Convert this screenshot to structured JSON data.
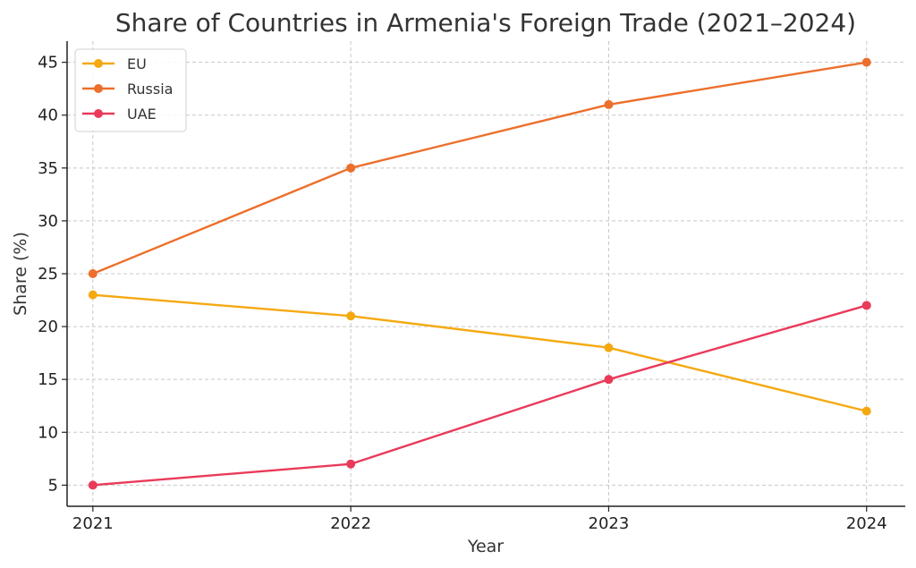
{
  "chart_data": {
    "type": "line",
    "title": "Share of Countries in Armenia's Foreign Trade (2021–2024)",
    "xlabel": "Year",
    "ylabel": "Share (%)",
    "x": [
      2021,
      2022,
      2023,
      2024
    ],
    "x_tick_labels": [
      "2021",
      "2022",
      "2023",
      "2024"
    ],
    "y_ticks": [
      5,
      10,
      15,
      20,
      25,
      30,
      35,
      40,
      45
    ],
    "y_tick_labels": [
      "5",
      "10",
      "15",
      "20",
      "25",
      "30",
      "35",
      "40",
      "45"
    ],
    "ylim": [
      3,
      47
    ],
    "xlim": [
      2020.9,
      2024.15
    ],
    "grid": true,
    "legend_position": "top-left",
    "series": [
      {
        "name": "EU",
        "color": "#f5a911",
        "values": [
          23,
          21,
          18,
          12
        ]
      },
      {
        "name": "Russia",
        "color": "#ec6f2b",
        "values": [
          25,
          35,
          41,
          45
        ]
      },
      {
        "name": "UAE",
        "color": "#e93a5a",
        "values": [
          5,
          7,
          15,
          22
        ]
      }
    ]
  }
}
